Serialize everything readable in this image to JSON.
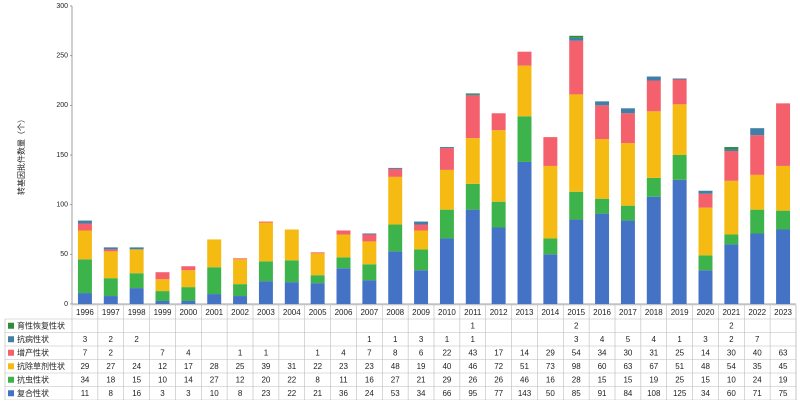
{
  "chart_data": {
    "type": "stacked-bar",
    "y_label": "转基因批件数量（个）",
    "categories": [
      "1996",
      "1997",
      "1998",
      "1999",
      "2000",
      "2001",
      "2002",
      "2003",
      "2004",
      "2005",
      "2006",
      "2007",
      "2008",
      "2009",
      "2010",
      "2011",
      "2012",
      "2013",
      "2014",
      "2015",
      "2016",
      "2017",
      "2018",
      "2019",
      "2020",
      "2021",
      "2022",
      "2023"
    ],
    "ylim": [
      0,
      300
    ],
    "yticks": [
      0,
      50,
      100,
      150,
      200,
      250,
      300
    ],
    "series": [
      {
        "name": "育性恢复性状",
        "color": "#2e8b3a",
        "values": [
          null,
          null,
          null,
          null,
          null,
          null,
          null,
          null,
          null,
          null,
          null,
          null,
          null,
          null,
          null,
          1,
          null,
          null,
          null,
          2,
          null,
          null,
          null,
          null,
          null,
          2,
          null,
          null
        ]
      },
      {
        "name": "抗病性状",
        "color": "#3f7fa8",
        "values": [
          3,
          2,
          2,
          null,
          null,
          null,
          null,
          null,
          null,
          null,
          null,
          1,
          1,
          3,
          1,
          1,
          null,
          null,
          null,
          3,
          4,
          5,
          4,
          1,
          3,
          2,
          7,
          null
        ]
      },
      {
        "name": "增产性状",
        "color": "#f4606c",
        "values": [
          7,
          2,
          null,
          7,
          4,
          null,
          1,
          1,
          null,
          1,
          4,
          7,
          8,
          6,
          22,
          43,
          17,
          14,
          29,
          54,
          34,
          30,
          31,
          25,
          14,
          30,
          40,
          63
        ]
      },
      {
        "name": "抗除草剂性状",
        "color": "#f5bb12",
        "values": [
          29,
          27,
          24,
          12,
          17,
          28,
          25,
          39,
          31,
          22,
          23,
          23,
          48,
          19,
          40,
          46,
          72,
          51,
          73,
          98,
          60,
          63,
          67,
          51,
          48,
          54,
          35,
          45
        ]
      },
      {
        "name": "抗虫性状",
        "color": "#3cb44b",
        "values": [
          34,
          18,
          15,
          10,
          14,
          27,
          12,
          20,
          22,
          8,
          11,
          16,
          27,
          21,
          29,
          26,
          26,
          46,
          16,
          28,
          15,
          15,
          19,
          25,
          15,
          10,
          24,
          19
        ]
      },
      {
        "name": "复合性状",
        "color": "#4472c4",
        "values": [
          11,
          8,
          16,
          3,
          3,
          10,
          8,
          23,
          22,
          21,
          36,
          24,
          53,
          34,
          66,
          95,
          77,
          143,
          50,
          85,
          91,
          84,
          108,
          125,
          34,
          60,
          71,
          75
        ]
      }
    ]
  }
}
